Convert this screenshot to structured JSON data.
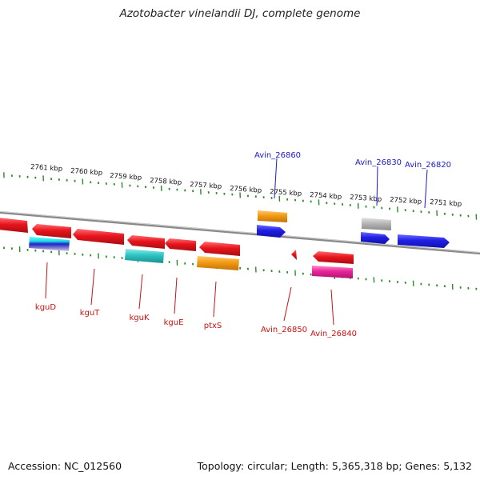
{
  "title": "Azotobacter vinelandii DJ, complete genome",
  "footer": {
    "accession": "Accession: NC_012560",
    "summary": "Topology: circular; Length: 5,365,318 bp; Genes: 5,132"
  },
  "colors": {
    "red": "#e8141d",
    "blue": "#1f1fe6",
    "orange": "#f39a14",
    "cyan": "#2cc4c4",
    "magenta": "#e8259a",
    "gray": "#b7b7b7",
    "tick": "#2a8a2a",
    "backbone": "#8a8a8a",
    "label_red": "#cc1111",
    "label_blue": "#1a1acc"
  },
  "ticks": [
    "2761 kbp",
    "2760 kbp",
    "2759 kbp",
    "2758 kbp",
    "2757 kbp",
    "2756 kbp",
    "2755 kbp",
    "2754 kbp",
    "2753 kbp",
    "2752 kbp",
    "2751 kbp"
  ],
  "labels": {
    "kguD": "kguD",
    "kguT": "kguT",
    "kguK": "kguK",
    "kguE": "kguE",
    "ptxS": "ptxS",
    "Avin_26850": "Avin_26850",
    "Avin_26840": "Avin_26840",
    "Avin_26860": "Avin_26860",
    "Avin_26830": "Avin_26830",
    "Avin_26820": "Avin_26820"
  }
}
